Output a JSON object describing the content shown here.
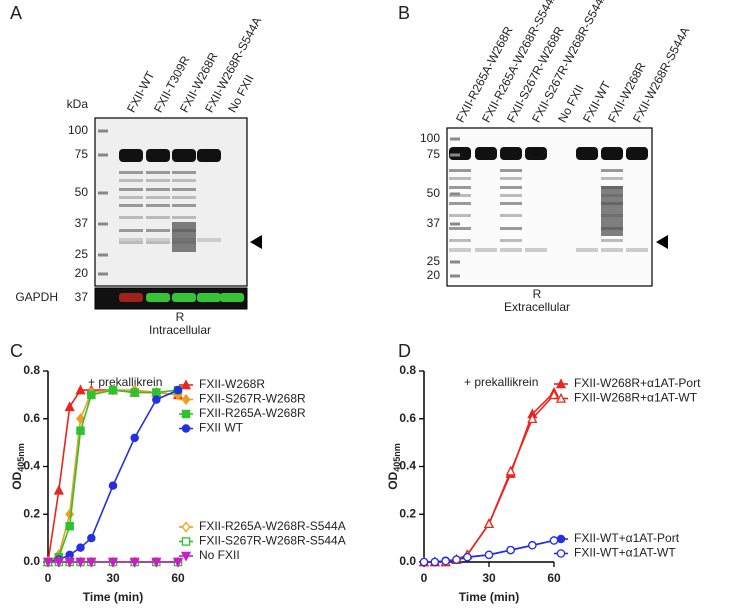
{
  "panels": [
    {
      "label": "A",
      "kda": "kDa",
      "lanes": [
        "FXII-WT",
        "FXII-T309R",
        "FXII-W268R",
        "FXII-W268R-S544A",
        "No FXII"
      ],
      "markers": [
        "100",
        "75",
        "50",
        "37",
        "25",
        "20"
      ],
      "loading_control": "GAPDH",
      "loading_control_marker": "37",
      "blot_note": "R",
      "fraction": "Intracellular"
    },
    {
      "label": "B",
      "lanes": [
        "FXII-R265A-W268R",
        "FXII-R265A-W268R-S544A",
        "FXII-S267R-W268R",
        "FXII-S267R-W268R-S544A",
        "No FXII",
        "FXII-WT",
        "FXII-W268R",
        "FXII-W268R-S544A"
      ],
      "markers": [
        "100",
        "75",
        "50",
        "37",
        "25",
        "20"
      ],
      "blot_note": "R",
      "fraction": "Extracellular"
    }
  ],
  "chart_data": [
    {
      "type": "line",
      "panel": "C",
      "annotation": "+ prekallikrein",
      "x_label": "Time (min)",
      "y_label": "OD",
      "y_label_sub": "405nm",
      "x": [
        0,
        5,
        10,
        15,
        20,
        30,
        40,
        50,
        60
      ],
      "xlim": [
        0,
        60
      ],
      "xticks": [
        0,
        30,
        60
      ],
      "ylim": [
        0,
        0.8
      ],
      "yticks": [
        {
          "value": 0,
          "label": "0.0"
        },
        0.2,
        0.4,
        0.6,
        0.8
      ],
      "series": [
        {
          "name": "FXII-W268R",
          "color": "#e8251f",
          "marker": "triangle",
          "filled": true,
          "legend": "upper",
          "values": [
            0,
            0.3,
            0.65,
            0.72,
            0.72,
            0.72,
            0.71,
            0.71,
            0.7
          ]
        },
        {
          "name": "FXII-S267R-W268R",
          "color": "#f39c1e",
          "marker": "diamond",
          "filled": true,
          "legend": "upper",
          "values": [
            0,
            0.03,
            0.2,
            0.6,
            0.71,
            0.72,
            0.72,
            0.71,
            0.7
          ]
        },
        {
          "name": "FXII-R265A-W268R",
          "color": "#2fc22f",
          "marker": "square",
          "filled": true,
          "legend": "upper",
          "values": [
            0,
            0.02,
            0.15,
            0.55,
            0.7,
            0.72,
            0.71,
            0.71,
            0.72
          ]
        },
        {
          "name": "FXII WT",
          "color": "#2330e0",
          "marker": "circle",
          "filled": true,
          "legend": "upper",
          "values": [
            0,
            0.01,
            0.03,
            0.06,
            0.1,
            0.32,
            0.52,
            0.68,
            0.72
          ]
        },
        {
          "name": "FXII-R265A-W268R-S544A",
          "color": "#f39c1e",
          "marker": "diamond",
          "filled": false,
          "legend": "lower",
          "values": [
            0,
            0,
            0,
            0,
            0,
            0,
            0,
            0,
            0
          ]
        },
        {
          "name": "FXII-S267R-W268R-S544A",
          "color": "#2fc22f",
          "marker": "square",
          "filled": false,
          "legend": "lower",
          "values": [
            0,
            0,
            0,
            0,
            0,
            0,
            0,
            0,
            0
          ]
        },
        {
          "name": "No FXII",
          "color": "#c81ec8",
          "marker": "down-triangle",
          "filled": true,
          "legend": "lower",
          "values": [
            0,
            0,
            0,
            0,
            0,
            0,
            0,
            0,
            0
          ]
        }
      ]
    },
    {
      "type": "line",
      "panel": "D",
      "annotation": "+ prekallikrein",
      "x_label": "Time (min)",
      "y_label": "OD",
      "y_label_sub": "405nm",
      "x": [
        0,
        5,
        10,
        15,
        20,
        30,
        40,
        50,
        60
      ],
      "xlim": [
        0,
        60
      ],
      "xticks": [
        0,
        30,
        60
      ],
      "ylim": [
        0,
        0.8
      ],
      "yticks": [
        {
          "value": 0,
          "label": "0.0"
        },
        0.2,
        0.4,
        0.6,
        0.8
      ],
      "series": [
        {
          "name": "FXII-W268R+α1AT-Port",
          "color": "#e8251f",
          "marker": "triangle",
          "filled": true,
          "legend": "upper",
          "values": [
            0,
            0,
            0,
            0.01,
            0.03,
            0.16,
            0.37,
            0.62,
            0.71
          ]
        },
        {
          "name": "FXII-W268R+α1AT-WT",
          "color": "#e8251f",
          "marker": "triangle",
          "filled": false,
          "legend": "upper",
          "values": [
            0,
            0,
            0,
            0.01,
            0.03,
            0.16,
            0.38,
            0.6,
            0.7
          ]
        },
        {
          "name": "FXII-WT+α1AT-Port",
          "color": "#2330e0",
          "marker": "circle",
          "filled": true,
          "legend": "lower",
          "values": [
            0,
            0,
            0.005,
            0.01,
            0.02,
            0.03,
            0.05,
            0.07,
            0.09
          ]
        },
        {
          "name": "FXII-WT+α1AT-WT",
          "color": "#2330e0",
          "marker": "circle",
          "filled": false,
          "legend": "lower",
          "values": [
            0,
            0,
            0.004,
            0.01,
            0.02,
            0.03,
            0.05,
            0.07,
            0.09
          ]
        }
      ]
    }
  ]
}
